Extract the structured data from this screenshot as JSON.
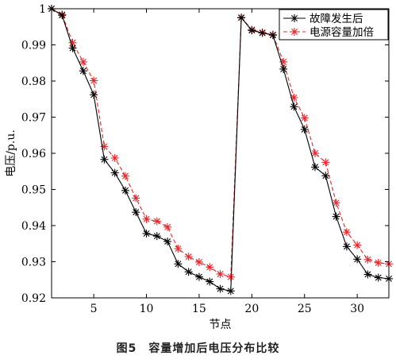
{
  "caption": "图5　容量增加后电压分布比较",
  "chart_data": {
    "type": "line",
    "xlabel": "节点",
    "ylabel": "电压/p.u.",
    "xlim": [
      1,
      33
    ],
    "ylim": [
      0.92,
      1.0
    ],
    "x_ticks": [
      5,
      10,
      15,
      20,
      25,
      30
    ],
    "y_ticks": [
      0.92,
      0.93,
      0.94,
      0.95,
      0.96,
      0.97,
      0.98,
      0.99,
      1
    ],
    "x_tick_labels": [
      "5",
      "10",
      "15",
      "20",
      "25",
      "30"
    ],
    "y_tick_labels": [
      "0.92",
      "0.93",
      "0.94",
      "0.95",
      "0.96",
      "0.97",
      "0.98",
      "0.99",
      "1"
    ],
    "legend_position": "top-right",
    "grid": false,
    "x": [
      1,
      2,
      3,
      4,
      5,
      6,
      7,
      8,
      9,
      10,
      11,
      12,
      13,
      14,
      15,
      16,
      17,
      18,
      19,
      20,
      21,
      22,
      23,
      24,
      25,
      26,
      27,
      28,
      29,
      30,
      31,
      32,
      33
    ],
    "series": [
      {
        "name": "故障发生后",
        "color": "#000000",
        "line_style": "solid",
        "marker": "asterisk",
        "values": [
          1.0,
          0.9982,
          0.9891,
          0.9828,
          0.9762,
          0.9583,
          0.9546,
          0.9497,
          0.9437,
          0.9378,
          0.9371,
          0.9356,
          0.9294,
          0.9272,
          0.9258,
          0.9245,
          0.9225,
          0.9219,
          0.9975,
          0.994,
          0.9933,
          0.9927,
          0.9833,
          0.9729,
          0.9666,
          0.9562,
          0.9538,
          0.9425,
          0.9342,
          0.9307,
          0.9265,
          0.9256,
          0.9253
        ]
      },
      {
        "name": "电源容量加倍",
        "color": "#e8262a",
        "line_style": "dashed",
        "marker": "asterisk",
        "values": [
          1.0,
          0.9984,
          0.9906,
          0.9853,
          0.9801,
          0.9619,
          0.9587,
          0.9537,
          0.9476,
          0.9418,
          0.9412,
          0.9396,
          0.9336,
          0.9314,
          0.9299,
          0.9285,
          0.9266,
          0.9258,
          0.9976,
          0.9942,
          0.9934,
          0.9928,
          0.9853,
          0.9754,
          0.9698,
          0.96,
          0.9575,
          0.9463,
          0.9382,
          0.9346,
          0.9306,
          0.9297,
          0.9294
        ]
      }
    ]
  }
}
